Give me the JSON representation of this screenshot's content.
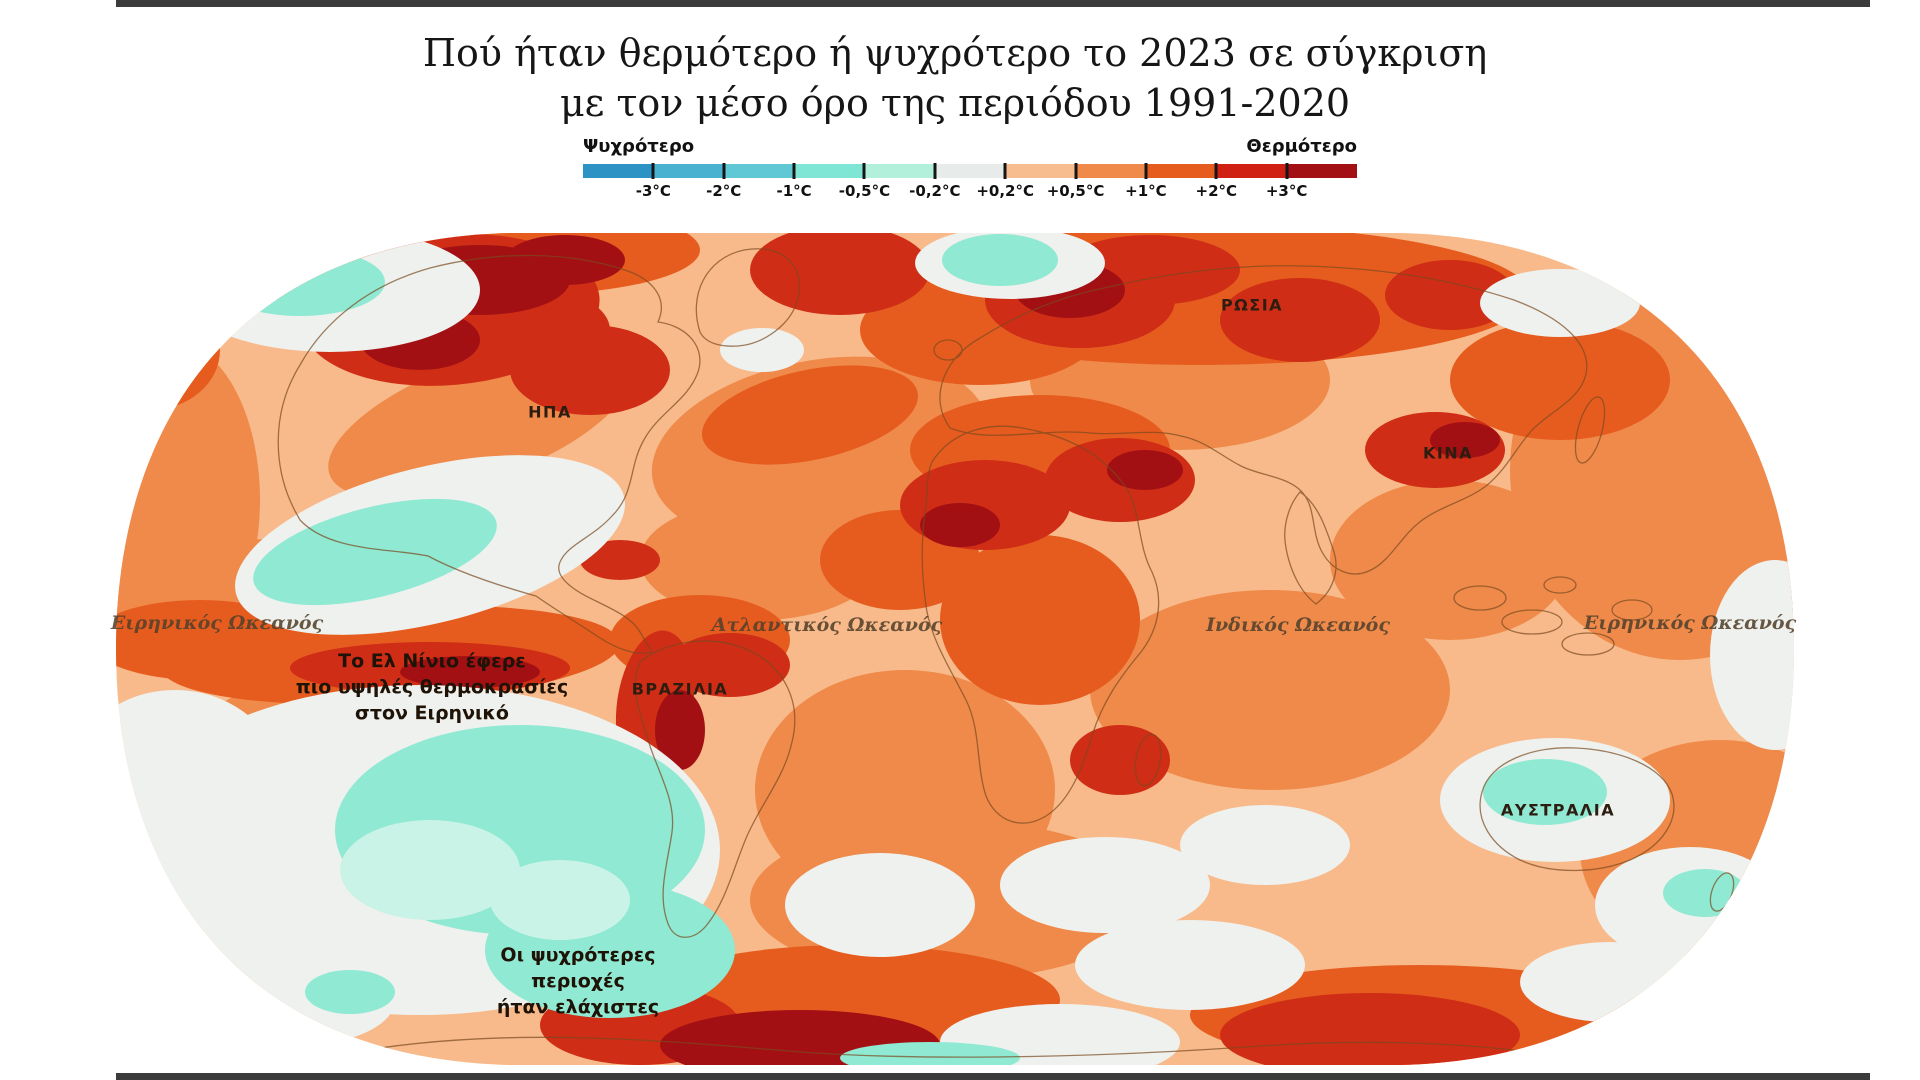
{
  "title": {
    "line1": "Πού ήταν θερμότερο ή ψυχρότερο το 2023 σε σύγκριση",
    "line2": "με τον μέσο όρο της περιόδου 1991-2020"
  },
  "legend": {
    "cooler_label": "Ψυχρότερο",
    "warmer_label": "Θερμότερο",
    "tick_labels": [
      "-3°C",
      "-2°C",
      "-1°C",
      "-0,5°C",
      "-0,2°C",
      "+0,2°C",
      "+0,5°C",
      "+1°C",
      "+2°C",
      "+3°C"
    ],
    "bin_colors": [
      "#2d93c5",
      "#49b2d0",
      "#5fc8d4",
      "#7fe6d5",
      "#b2f0db",
      "#e7ebe9",
      "#f8bd8f",
      "#ef8a4a",
      "#e65c1f",
      "#cf2013",
      "#a31014"
    ]
  },
  "chart_data": {
    "type": "heatmap",
    "title": "Πού ήταν θερμότερο ή ψυχρότερο το 2023 σε σύγκριση με τον μέσο όρο της περιόδου 1991-2020",
    "legend_entries": [
      "Ψυχρότερο",
      "Θερμότερο"
    ],
    "scale_ticks_celsius": [
      -3,
      -2,
      -1,
      -0.5,
      -0.2,
      0.2,
      0.5,
      1,
      2,
      3
    ],
    "scale_colors": [
      "#2d93c5",
      "#49b2d0",
      "#5fc8d4",
      "#7fe6d5",
      "#b2f0db",
      "#e7ebe9",
      "#f8bd8f",
      "#ef8a4a",
      "#e65c1f",
      "#cf2013",
      "#a31014"
    ]
  },
  "map": {
    "country_labels": [
      {
        "text": "ΗΠΑ"
      },
      {
        "text": "ΡΩΣΙΑ"
      },
      {
        "text": "ΚΙΝΑ"
      },
      {
        "text": "ΒΡΑΖΙΛΙΑ"
      },
      {
        "text": "ΑΥΣΤΡΑΛΙΑ"
      }
    ],
    "ocean_labels": [
      {
        "text": "Ειρηνικός Ωκεανός"
      },
      {
        "text": "Ατλαντικός Ωκεανός"
      },
      {
        "text": "Ινδικός Ωκεανός"
      },
      {
        "text": "Ειρηνικός Ωκεανός"
      }
    ],
    "annotations": [
      {
        "lines": [
          "Το Ελ Νίνιο έφερε",
          "πιο υψηλές θερμοκρασίες",
          "στον Ειρηνικό"
        ]
      },
      {
        "lines": [
          "Οι ψυχρότερες",
          "περιοχές",
          "ήταν ελάχιστες"
        ]
      }
    ]
  }
}
